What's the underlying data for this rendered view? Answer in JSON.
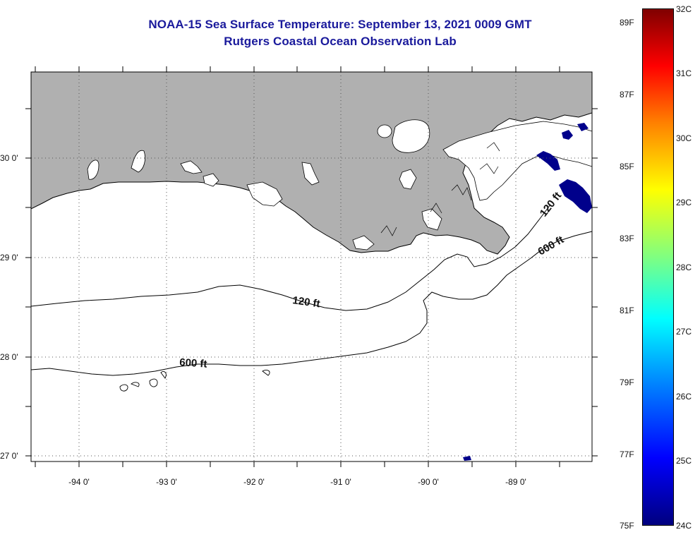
{
  "title": {
    "line1": "NOAA-15 Sea Surface Temperature:  September 13, 2021 0009 GMT",
    "line2": "Rutgers Coastal Ocean Observation Lab"
  },
  "map": {
    "lon_labels": [
      "-94 0'",
      "-93 0'",
      "-92 0'",
      "-91 0'",
      "-90 0'",
      "-89 0'"
    ],
    "lat_labels": [
      "30 0'",
      "29 0'",
      "28 0'",
      "27 0'"
    ],
    "contours": [
      {
        "depth_label": "120 ft"
      },
      {
        "depth_label": "600 ft"
      },
      {
        "depth_label": "120 ft"
      },
      {
        "depth_label": "600 ft"
      }
    ],
    "colors": {
      "land": "#b0b0b0",
      "water": "#ffffff",
      "cold_sst": "#00008b",
      "title": "#1a1a9c"
    }
  },
  "colorbar": {
    "fahrenheit": [
      "89F",
      "87F",
      "85F",
      "83F",
      "81F",
      "79F",
      "77F",
      "75F"
    ],
    "celsius": [
      "32C",
      "31C",
      "30C",
      "29C",
      "28C",
      "27C",
      "26C",
      "25C",
      "24C"
    ],
    "range_c": [
      24,
      32
    ],
    "range_f": [
      75,
      89
    ],
    "colors": [
      "#00007f",
      "#0000ff",
      "#0080ff",
      "#00ffff",
      "#80ff80",
      "#ffff00",
      "#ff8000",
      "#ff0000",
      "#7f0000"
    ]
  }
}
